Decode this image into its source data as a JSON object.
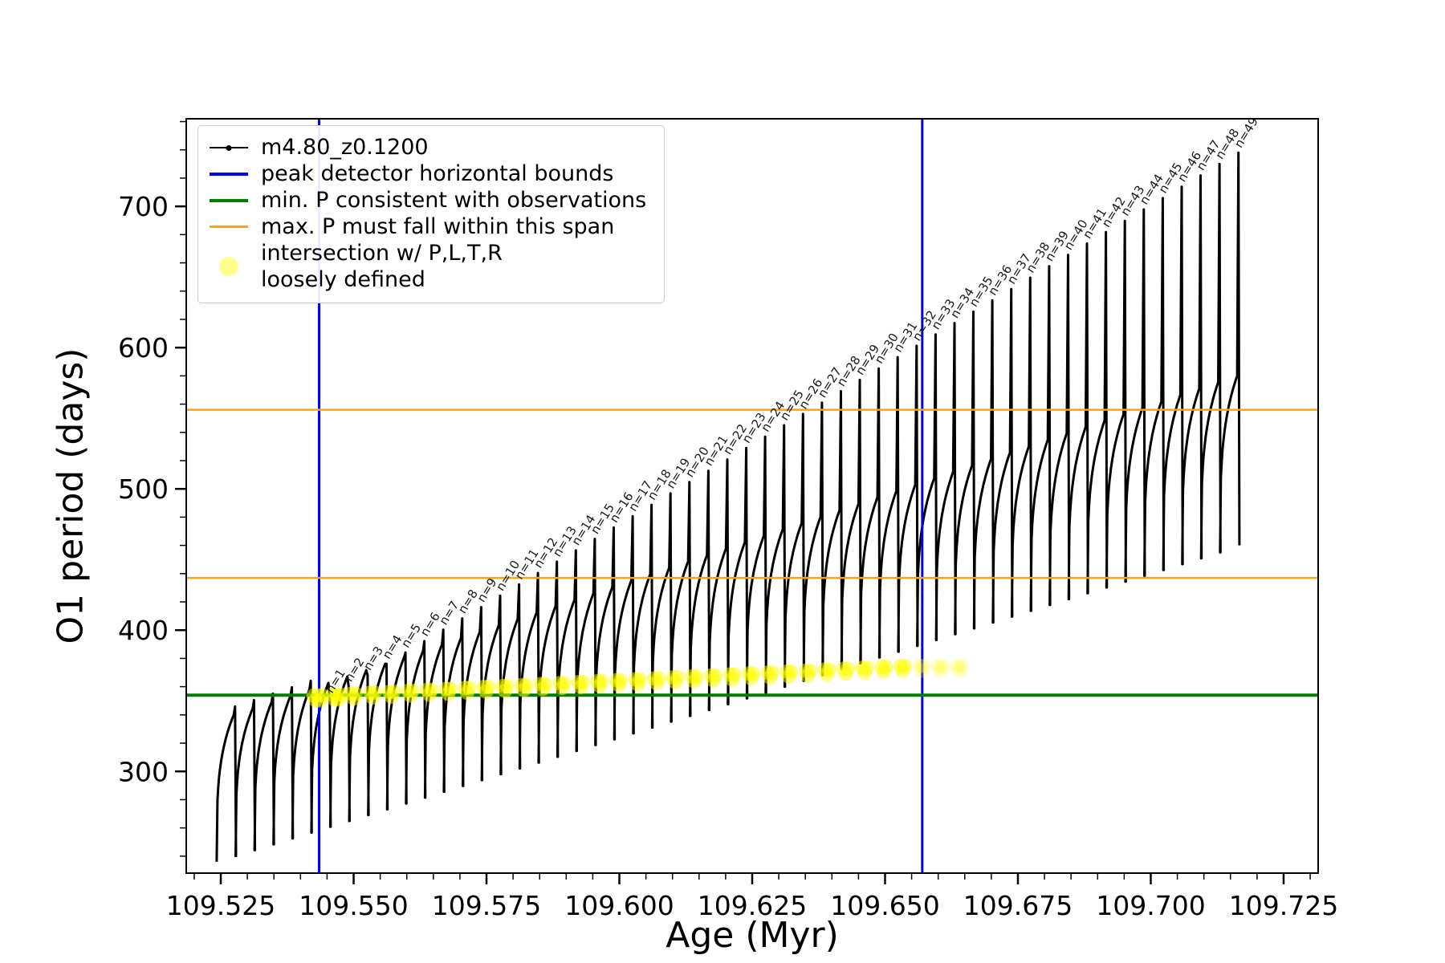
{
  "chart_data": {
    "type": "line",
    "title": "",
    "xlabel": "Age (Myr)",
    "ylabel": "O1 period (days)",
    "xlim": [
      109.5185,
      109.7315
    ],
    "ylim": [
      228,
      762
    ],
    "grid": false,
    "x_major_ticks": [
      109.525,
      109.55,
      109.575,
      109.6,
      109.625,
      109.65,
      109.675,
      109.7,
      109.725
    ],
    "x_major_labels": [
      "109.525",
      "109.550",
      "109.575",
      "109.600",
      "109.625",
      "109.650",
      "109.675",
      "109.700",
      "109.725"
    ],
    "x_minor_step": 0.005,
    "y_major_ticks": [
      300,
      400,
      500,
      600,
      700
    ],
    "y_minor_step": 20,
    "legend": {
      "position": "upper-left",
      "items": [
        {
          "label": "m4.80_z0.1200",
          "color": "#000000",
          "marker": "line-dot"
        },
        {
          "label": "peak detector horizontal bounds",
          "color": "#0000ff",
          "marker": "line"
        },
        {
          "label": "min. P consistent with observations",
          "color": "#008000",
          "marker": "line"
        },
        {
          "label": "max. P must fall within this span",
          "color": "#ffa500",
          "marker": "line"
        },
        {
          "label": "intersection w/ P,L,T,R",
          "label2": "loosely defined",
          "color": "#ffff00",
          "marker": "circle"
        }
      ]
    },
    "series_name": "m4.80_z0.1200",
    "series_color": "#000000",
    "vlines": {
      "color": "#0000ff",
      "x": [
        109.5435,
        109.657
      ]
    },
    "hlines_orange": {
      "color": "#ffa500",
      "y": [
        437,
        556
      ]
    },
    "hline_green": {
      "color": "#008000",
      "y": 354
    },
    "pulses": {
      "count_total": 54,
      "labeled_start_index": 5,
      "labeled_count": 49,
      "x_first_labeled_peak": 109.5455,
      "x_last_labeled_peak": 109.7165,
      "peak_y_first": 352,
      "peak_y_last": 738,
      "hump_top_first": 340,
      "hump_top_last": 580,
      "min_y_first": 236,
      "min_y_last": 455,
      "end_drop_y": 460,
      "label_prefix": "n=",
      "label_rotation_deg": -58
    },
    "intersection_markers": {
      "color": "#ffff00",
      "band_y_first": 352,
      "band_y_last": 373,
      "n_first": 1,
      "n_last": 32,
      "faded_n_last": 35
    }
  }
}
